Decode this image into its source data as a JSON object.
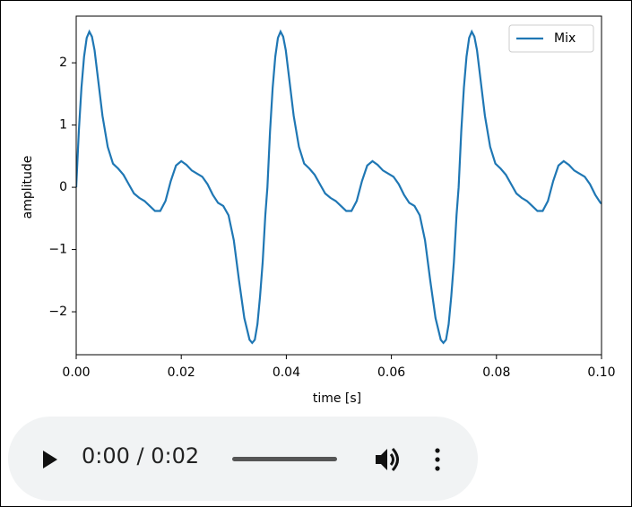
{
  "chart_data": {
    "type": "line",
    "xlabel": "time [s]",
    "ylabel": "amplitude",
    "x": [
      0,
      0.0005,
      0.001,
      0.0015,
      0.002,
      0.0025,
      0.003,
      0.0035,
      0.004,
      0.005,
      0.006,
      0.007,
      0.008,
      0.009,
      0.01,
      0.011,
      0.012,
      0.013,
      0.014,
      0.015,
      0.016,
      0.017,
      0.018,
      0.019,
      0.02,
      0.021,
      0.022,
      0.023,
      0.024,
      0.025,
      0.026,
      0.027,
      0.028,
      0.029,
      0.03,
      0.031,
      0.032,
      0.033,
      0.0335,
      0.034,
      0.0345,
      0.035,
      0.0355,
      0.036,
      0.0364,
      0.0369,
      0.0374,
      0.0379,
      0.0384,
      0.0389,
      0.0394,
      0.0399,
      0.0404,
      0.0414,
      0.0424,
      0.0434,
      0.0444,
      0.0454,
      0.0464,
      0.0474,
      0.0484,
      0.0494,
      0.0504,
      0.0514,
      0.0524,
      0.0534,
      0.0544,
      0.0554,
      0.0564,
      0.0574,
      0.0584,
      0.0594,
      0.0604,
      0.0614,
      0.0624,
      0.0634,
      0.0644,
      0.0654,
      0.0664,
      0.0674,
      0.0684,
      0.0694,
      0.0699,
      0.0704,
      0.0709,
      0.0714,
      0.0719,
      0.0724,
      0.0728,
      0.0733,
      0.0738,
      0.0743,
      0.0748,
      0.0753,
      0.0758,
      0.0763,
      0.0768,
      0.0778,
      0.0788,
      0.0798,
      0.0808,
      0.0818,
      0.0828,
      0.0838,
      0.0848,
      0.0858,
      0.0868,
      0.0878,
      0.0888,
      0.0898,
      0.0908,
      0.0918,
      0.0928,
      0.0938,
      0.0948,
      0.0958,
      0.0968,
      0.0978,
      0.0988,
      0.0998,
      0.1
    ],
    "series": [
      {
        "name": "Mix",
        "color": "#1f77b4",
        "values": [
          0,
          0.9,
          1.6,
          2.1,
          2.4,
          2.5,
          2.42,
          2.2,
          1.85,
          1.15,
          0.65,
          0.38,
          0.3,
          0.2,
          0.05,
          -0.1,
          -0.17,
          -0.22,
          -0.3,
          -0.38,
          -0.38,
          -0.22,
          0.1,
          0.35,
          0.42,
          0.36,
          0.27,
          0.22,
          0.17,
          0.05,
          -0.12,
          -0.25,
          -0.3,
          -0.45,
          -0.85,
          -1.5,
          -2.1,
          -2.45,
          -2.5,
          -2.45,
          -2.2,
          -1.75,
          -1.2,
          -0.45,
          0,
          0.9,
          1.6,
          2.1,
          2.4,
          2.5,
          2.42,
          2.2,
          1.85,
          1.15,
          0.65,
          0.38,
          0.3,
          0.2,
          0.05,
          -0.1,
          -0.17,
          -0.22,
          -0.3,
          -0.38,
          -0.38,
          -0.22,
          0.1,
          0.35,
          0.42,
          0.36,
          0.27,
          0.22,
          0.17,
          0.05,
          -0.12,
          -0.25,
          -0.3,
          -0.45,
          -0.85,
          -1.5,
          -2.1,
          -2.45,
          -2.5,
          -2.45,
          -2.2,
          -1.75,
          -1.2,
          -0.45,
          0,
          0.9,
          1.6,
          2.1,
          2.4,
          2.5,
          2.42,
          2.2,
          1.85,
          1.15,
          0.65,
          0.38,
          0.3,
          0.2,
          0.05,
          -0.1,
          -0.17,
          -0.22,
          -0.3,
          -0.38,
          -0.38,
          -0.22,
          0.1,
          0.35,
          0.42,
          0.36,
          0.27,
          0.22,
          0.17,
          0.05,
          -0.12,
          -0.25,
          -0.26
        ]
      }
    ],
    "xlim": [
      0,
      0.1
    ],
    "xticks": [
      {
        "value": 0,
        "label": "0.00"
      },
      {
        "value": 0.02,
        "label": "0.02"
      },
      {
        "value": 0.04,
        "label": "0.04"
      },
      {
        "value": 0.06,
        "label": "0.06"
      },
      {
        "value": 0.08,
        "label": "0.08"
      },
      {
        "value": 0.1,
        "label": "0.10"
      }
    ],
    "ylim": [
      -2.69,
      2.75
    ],
    "yticks": [
      {
        "value": -2,
        "label": "−2"
      },
      {
        "value": -1,
        "label": "−1"
      },
      0,
      1,
      2
    ],
    "legend": "upper right",
    "grid": false
  },
  "player": {
    "time": "0:00 / 0:02"
  }
}
